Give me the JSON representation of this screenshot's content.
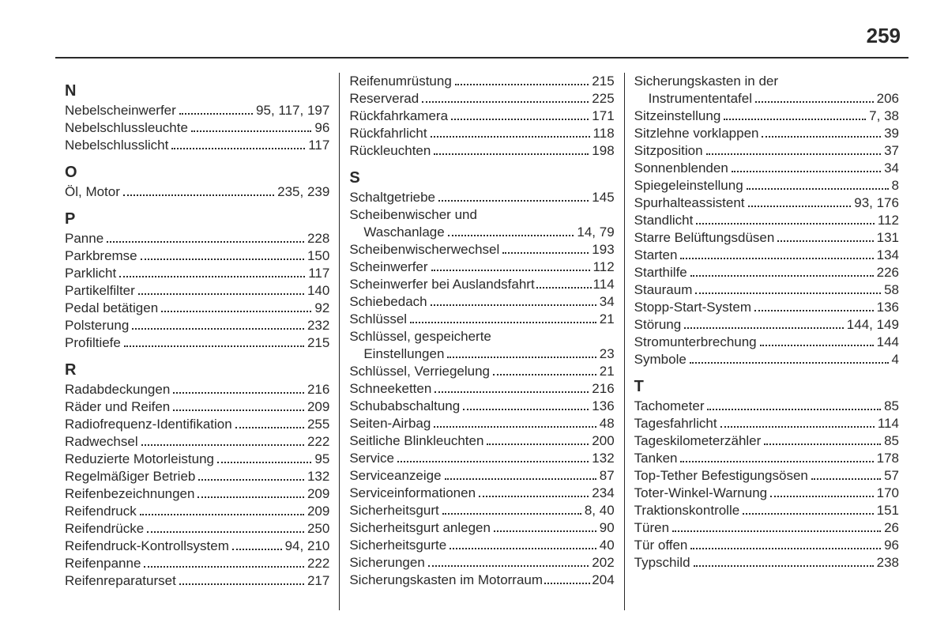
{
  "pageNumber": "259",
  "columns": [
    {
      "groups": [
        {
          "letter": "N",
          "entries": [
            {
              "term": "Nebelscheinwerfer",
              "pages": "95, 117, 197"
            },
            {
              "term": "Nebelschlussleuchte",
              "pages": "96"
            },
            {
              "term": "Nebelschlusslicht",
              "pages": "117"
            }
          ]
        },
        {
          "letter": "O",
          "entries": [
            {
              "term": "Öl, Motor",
              "pages": "235, 239"
            }
          ]
        },
        {
          "letter": "P",
          "entries": [
            {
              "term": "Panne",
              "pages": "228"
            },
            {
              "term": "Parkbremse",
              "pages": "150"
            },
            {
              "term": "Parklicht",
              "pages": "117"
            },
            {
              "term": "Partikelfilter",
              "pages": "140"
            },
            {
              "term": "Pedal betätigen",
              "pages": "92"
            },
            {
              "term": "Polsterung",
              "pages": "232"
            },
            {
              "term": "Profiltiefe",
              "pages": "215"
            }
          ]
        },
        {
          "letter": "R",
          "entries": [
            {
              "term": "Radabdeckungen",
              "pages": "216"
            },
            {
              "term": "Räder und Reifen",
              "pages": "209"
            },
            {
              "term": "Radiofrequenz-Identifikation",
              "pages": "255"
            },
            {
              "term": "Radwechsel",
              "pages": "222"
            },
            {
              "term": "Reduzierte Motorleistung",
              "pages": "95"
            },
            {
              "term": "Regelmäßiger Betrieb",
              "pages": "132"
            },
            {
              "term": "Reifenbezeichnungen",
              "pages": "209"
            },
            {
              "term": "Reifendruck",
              "pages": "209"
            },
            {
              "term": "Reifendrücke",
              "pages": "250"
            },
            {
              "term": "Reifendruck-Kontrollsystem",
              "pages": "94, 210"
            },
            {
              "term": "Reifenpanne",
              "pages": "222"
            },
            {
              "term": "Reifenreparaturset",
              "pages": "217"
            }
          ]
        }
      ]
    },
    {
      "groups": [
        {
          "letter": null,
          "entries": [
            {
              "term": "Reifenumrüstung",
              "pages": "215"
            },
            {
              "term": "Reserverad",
              "pages": "225"
            },
            {
              "term": "Rückfahrkamera",
              "pages": "171"
            },
            {
              "term": "Rückfahrlicht",
              "pages": "118"
            },
            {
              "term": "Rückleuchten",
              "pages": "198"
            }
          ]
        },
        {
          "letter": "S",
          "entries": [
            {
              "term": "Schaltgetriebe",
              "pages": "145"
            },
            {
              "term": "Scheibenwischer und",
              "pages": "",
              "noDots": true
            },
            {
              "term": "Waschanlage",
              "pages": "14, 79",
              "continuation": true
            },
            {
              "term": "Scheibenwischerwechsel",
              "pages": "193"
            },
            {
              "term": "Scheinwerfer",
              "pages": "112"
            },
            {
              "term": "Scheinwerfer bei Auslandsfahrt",
              "pages": "114",
              "tight": true
            },
            {
              "term": "Schiebedach",
              "pages": "34"
            },
            {
              "term": "Schlüssel",
              "pages": "21"
            },
            {
              "term": "Schlüssel, gespeicherte",
              "pages": "",
              "noDots": true
            },
            {
              "term": "Einstellungen",
              "pages": "23",
              "continuation": true
            },
            {
              "term": "Schlüssel, Verriegelung",
              "pages": "21"
            },
            {
              "term": "Schneeketten",
              "pages": "216"
            },
            {
              "term": "Schubabschaltung",
              "pages": "136"
            },
            {
              "term": "Seiten-Airbag",
              "pages": "48"
            },
            {
              "term": "Seitliche Blinkleuchten",
              "pages": "200"
            },
            {
              "term": "Service",
              "pages": "132"
            },
            {
              "term": "Serviceanzeige",
              "pages": "87"
            },
            {
              "term": "Serviceinformationen",
              "pages": "234"
            },
            {
              "term": "Sicherheitsgurt",
              "pages": "8, 40"
            },
            {
              "term": "Sicherheitsgurt anlegen",
              "pages": "90"
            },
            {
              "term": "Sicherheitsgurte",
              "pages": "40"
            },
            {
              "term": "Sicherungen",
              "pages": "202"
            },
            {
              "term": "Sicherungskasten im Motorraum",
              "pages": "204",
              "tight": true
            }
          ]
        }
      ]
    },
    {
      "groups": [
        {
          "letter": null,
          "entries": [
            {
              "term": "Sicherungskasten in der",
              "pages": "",
              "noDots": true
            },
            {
              "term": "Instrumententafel",
              "pages": "206",
              "continuation": true
            },
            {
              "term": "Sitzeinstellung",
              "pages": "7, 38"
            },
            {
              "term": "Sitzlehne vorklappen",
              "pages": "39"
            },
            {
              "term": "Sitzposition",
              "pages": "37"
            },
            {
              "term": "Sonnenblenden",
              "pages": "34"
            },
            {
              "term": "Spiegeleinstellung",
              "pages": "8"
            },
            {
              "term": "Spurhalteassistent",
              "pages": "93, 176"
            },
            {
              "term": "Standlicht",
              "pages": "112"
            },
            {
              "term": "Starre Belüftungsdüsen",
              "pages": "131"
            },
            {
              "term": "Starten",
              "pages": "134"
            },
            {
              "term": "Starthilfe",
              "pages": "226"
            },
            {
              "term": "Stauraum",
              "pages": "58"
            },
            {
              "term": "Stopp-Start-System",
              "pages": "136"
            },
            {
              "term": "Störung",
              "pages": "144, 149"
            },
            {
              "term": "Stromunterbrechung",
              "pages": "144"
            },
            {
              "term": "Symbole",
              "pages": "4"
            }
          ]
        },
        {
          "letter": "T",
          "entries": [
            {
              "term": "Tachometer",
              "pages": "85"
            },
            {
              "term": "Tagesfahrlicht",
              "pages": "114"
            },
            {
              "term": "Tageskilometerzähler",
              "pages": "85"
            },
            {
              "term": "Tanken",
              "pages": "178"
            },
            {
              "term": "Top-Tether Befestigungsösen",
              "pages": "57"
            },
            {
              "term": "Toter-Winkel-Warnung",
              "pages": "170"
            },
            {
              "term": "Traktionskontrolle",
              "pages": "151"
            },
            {
              "term": "Türen",
              "pages": "26"
            },
            {
              "term": "Tür offen",
              "pages": "96"
            },
            {
              "term": "Typschild",
              "pages": "238"
            }
          ]
        }
      ]
    }
  ]
}
